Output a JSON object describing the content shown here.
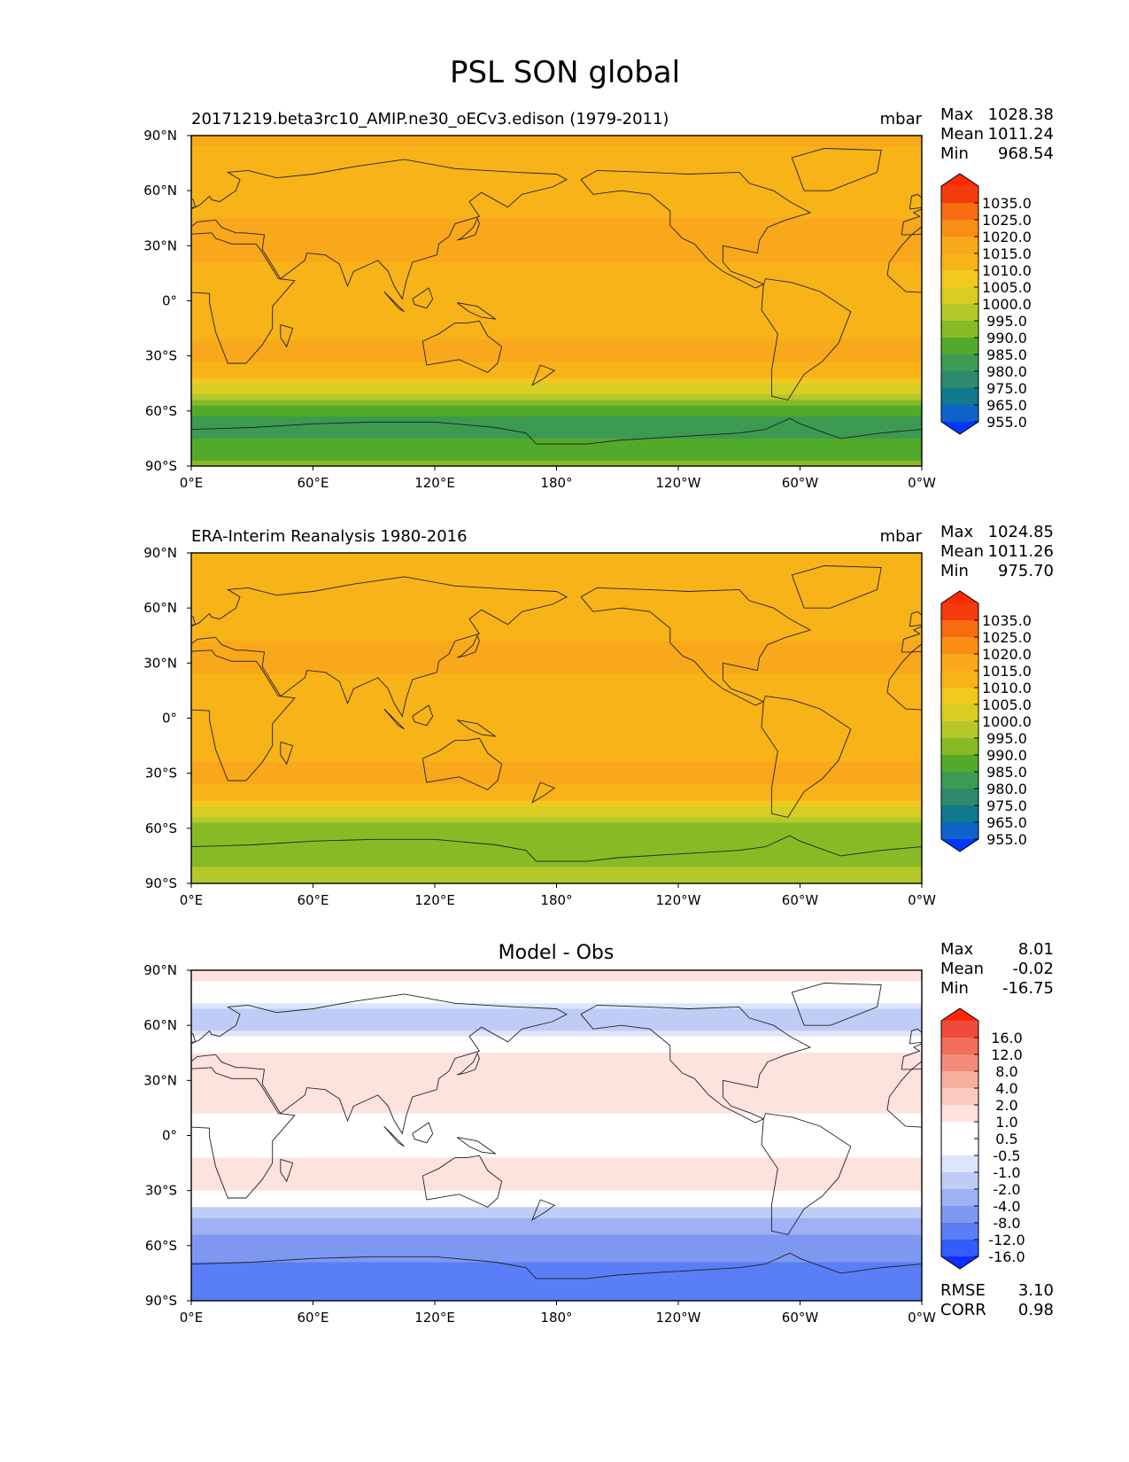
{
  "figure": {
    "title": "PSL SON global"
  },
  "colors": {
    "psl_levels": [
      "#0037ff",
      "#0f62c8",
      "#10788f",
      "#2e8a6c",
      "#3c9a52",
      "#52aa2a",
      "#88ba25",
      "#b4c82a",
      "#d9cd24",
      "#f3c81f",
      "#f7b317",
      "#f8a81a",
      "#fa8d16",
      "#f86c10",
      "#f43b0c",
      "#ff2a00"
    ],
    "diff_levels": [
      "#0c2eff",
      "#345cfb",
      "#5a7ef5",
      "#7e98f2",
      "#9fb1f4",
      "#bfcdf6",
      "#dce5fa",
      "#ffffff",
      "#ffffff",
      "#fde2de",
      "#fbc9c0",
      "#f8ae9f",
      "#f48c7c",
      "#f26d5a",
      "#ee4b3c",
      "#ff2600"
    ],
    "coastline": "#222222"
  },
  "panels": [
    {
      "title": "20171219.beta3rc10_AMIP.ne30_oECv3.edison (1979-2011)",
      "center_title": "",
      "units": "mbar",
      "stats": [
        {
          "label": "Max",
          "value": "1028.38"
        },
        {
          "label": "Mean",
          "value": "1011.24"
        },
        {
          "label": "Min",
          "value": "968.54"
        }
      ],
      "colorbar": {
        "scheme": "psl_levels",
        "labels": [
          "1035.0",
          "1025.0",
          "1020.0",
          "1015.0",
          "1010.0",
          "1005.0",
          "1000.0",
          "995.0",
          "990.0",
          "985.0",
          "980.0",
          "975.0",
          "965.0",
          "955.0"
        ]
      },
      "extra_stats": []
    },
    {
      "title": "ERA-Interim Reanalysis 1980-2016",
      "center_title": "",
      "units": "mbar",
      "stats": [
        {
          "label": "Max",
          "value": "1024.85"
        },
        {
          "label": "Mean",
          "value": "1011.26"
        },
        {
          "label": "Min",
          "value": "975.70"
        }
      ],
      "colorbar": {
        "scheme": "psl_levels",
        "labels": [
          "1035.0",
          "1025.0",
          "1020.0",
          "1015.0",
          "1010.0",
          "1005.0",
          "1000.0",
          "995.0",
          "990.0",
          "985.0",
          "980.0",
          "975.0",
          "965.0",
          "955.0"
        ]
      },
      "extra_stats": []
    },
    {
      "title": "",
      "center_title": "Model - Obs",
      "units": "",
      "stats": [
        {
          "label": "Max",
          "value": "8.01"
        },
        {
          "label": "Mean",
          "value": "-0.02"
        },
        {
          "label": "Min",
          "value": "-16.75"
        }
      ],
      "colorbar": {
        "scheme": "diff_levels",
        "labels": [
          "16.0",
          "12.0",
          "8.0",
          "4.0",
          "2.0",
          "1.0",
          "0.5",
          "-0.5",
          "-1.0",
          "-2.0",
          "-4.0",
          "-8.0",
          "-12.0",
          "-16.0"
        ]
      },
      "extra_stats": [
        {
          "label": "RMSE",
          "value": "3.10"
        },
        {
          "label": "CORR",
          "value": "0.98"
        }
      ]
    }
  ],
  "chart_data": [
    {
      "type": "heatmap",
      "title": "20171219.beta3rc10_AMIP.ne30_oECv3.edison (1979-2011)",
      "units": "mbar",
      "xlabels": [
        "0°E",
        "60°E",
        "120°E",
        "180°",
        "120°W",
        "60°W",
        "0°W"
      ],
      "ylabels": [
        "90°N",
        "60°N",
        "30°N",
        "0°",
        "30°S",
        "60°S",
        "90°S"
      ],
      "xlim": [
        0,
        360
      ],
      "ylim": [
        -90,
        90
      ],
      "lat": [
        -90,
        -80,
        -70,
        -60,
        -50,
        -40,
        -30,
        -20,
        -10,
        0,
        10,
        20,
        30,
        40,
        50,
        60,
        70,
        80,
        90
      ],
      "zonal_mean": [
        992,
        987,
        982,
        986,
        1000,
        1012,
        1017,
        1015,
        1011,
        1010,
        1012,
        1015,
        1017,
        1017,
        1013,
        1010,
        1012,
        1014,
        1016
      ],
      "stats": {
        "max": 1028.38,
        "mean": 1011.24,
        "min": 968.54
      }
    },
    {
      "type": "heatmap",
      "title": "ERA-Interim Reanalysis 1980-2016",
      "units": "mbar",
      "xlabels": [
        "0°E",
        "60°E",
        "120°E",
        "180°",
        "120°W",
        "60°W",
        "0°W"
      ],
      "ylabels": [
        "90°N",
        "60°N",
        "30°N",
        "0°",
        "30°S",
        "60°S",
        "90°S"
      ],
      "xlim": [
        0,
        360
      ],
      "ylim": [
        -90,
        90
      ],
      "lat": [
        -90,
        -80,
        -70,
        -60,
        -50,
        -40,
        -30,
        -20,
        -10,
        0,
        10,
        20,
        30,
        40,
        50,
        60,
        70,
        80,
        90
      ],
      "zonal_mean": [
        1000,
        995,
        990,
        991,
        1003,
        1014,
        1017,
        1014,
        1011,
        1010,
        1011,
        1014,
        1016,
        1016,
        1013,
        1011,
        1012,
        1013,
        1014
      ],
      "stats": {
        "max": 1024.85,
        "mean": 1011.26,
        "min": 975.7
      }
    },
    {
      "type": "heatmap",
      "title": "Model - Obs",
      "units": "",
      "xlabels": [
        "0°E",
        "60°E",
        "120°E",
        "180°",
        "120°W",
        "60°W",
        "0°W"
      ],
      "ylabels": [
        "90°N",
        "60°N",
        "30°N",
        "0°",
        "30°S",
        "60°S",
        "90°S"
      ],
      "xlim": [
        0,
        360
      ],
      "ylim": [
        -90,
        90
      ],
      "lat": [
        -90,
        -80,
        -70,
        -60,
        -50,
        -40,
        -30,
        -20,
        -10,
        0,
        10,
        20,
        30,
        40,
        50,
        60,
        70,
        80,
        90
      ],
      "zonal_mean": [
        -10,
        -9,
        -8,
        -6,
        -3,
        -1,
        1,
        1.5,
        0.8,
        0.3,
        0.8,
        1.5,
        2,
        1.5,
        0.5,
        -2,
        -1,
        0.5,
        1.5
      ],
      "stats": {
        "max": 8.01,
        "mean": -0.02,
        "min": -16.75,
        "rmse": 3.1,
        "corr": 0.98
      }
    }
  ]
}
